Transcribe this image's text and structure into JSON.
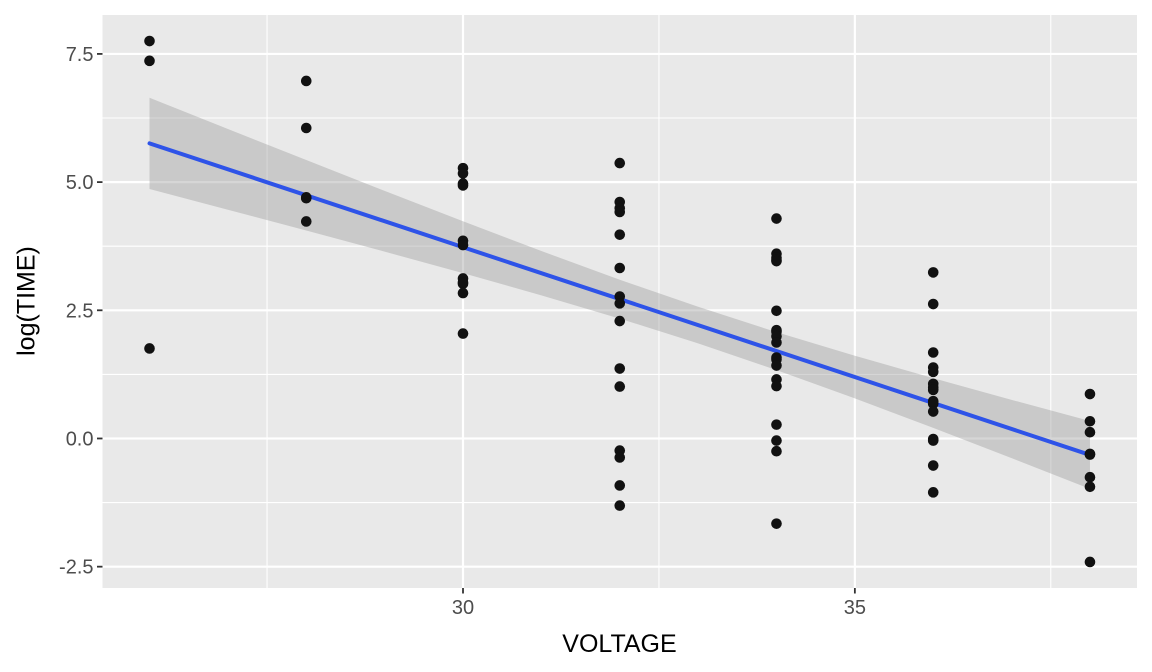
{
  "chart_data": {
    "type": "scatter",
    "title": "",
    "xlabel": "VOLTAGE",
    "ylabel": "log(TIME)",
    "xlim": [
      25.4,
      38.6
    ],
    "ylim": [
      -2.916,
      8.259
    ],
    "x_breaks": [
      30,
      35
    ],
    "x_tick_labels": [
      "30",
      "35"
    ],
    "x_minor_breaks": [
      27.5,
      32.5,
      37.5
    ],
    "y_breaks": [
      7.5,
      5.0,
      2.5,
      0.0,
      -2.5
    ],
    "y_tick_labels": [
      "7.5",
      "5.0",
      "2.5",
      "0.0",
      "-2.5"
    ],
    "y_minor_breaks": [
      6.25,
      3.75,
      1.25,
      -1.25
    ],
    "grid": true,
    "legend": "none",
    "groups": [
      {
        "voltage": 26,
        "log_time": [
          7.751,
          7.365,
          1.756
        ]
      },
      {
        "voltage": 28,
        "log_time": [
          6.973,
          6.055,
          4.703,
          4.685,
          4.232
        ]
      },
      {
        "voltage": 30,
        "log_time": [
          5.272,
          5.17,
          4.971,
          4.935,
          3.856,
          3.771,
          3.121,
          3.046,
          3.018,
          2.836,
          2.046
        ]
      },
      {
        "voltage": 32,
        "log_time": [
          5.371,
          4.611,
          4.492,
          4.417,
          3.975,
          3.325,
          2.768,
          2.635,
          2.29,
          1.364,
          1.012,
          -0.236,
          -0.371,
          -0.916,
          -1.309
        ]
      },
      {
        "voltage": 34,
        "log_time": [
          4.289,
          3.603,
          3.524,
          3.482,
          3.458,
          2.49,
          2.113,
          2.081,
          1.995,
          1.872,
          1.579,
          1.541,
          1.423,
          1.151,
          1.022,
          0.27,
          -0.041,
          -0.248,
          -1.661
        ]
      },
      {
        "voltage": 36,
        "log_time": [
          3.239,
          2.622,
          1.677,
          1.384,
          1.3,
          1.065,
          0.997,
          0.948,
          0.728,
          0.678,
          0.525,
          -0.01,
          -0.041,
          -0.528,
          -1.05
        ]
      },
      {
        "voltage": 38,
        "log_time": [
          0.867,
          0.336,
          0.122,
          -0.301,
          -0.315,
          -0.755,
          -0.942,
          -2.408
        ]
      }
    ],
    "smooth": {
      "method": "lm",
      "x_start": 26,
      "y_start": 5.756,
      "x_end": 38,
      "y_end": -0.321,
      "slope": -0.506,
      "intercept": 18.92
    },
    "ribbon": {
      "x": [
        26,
        27,
        28,
        29,
        30,
        31,
        32,
        33,
        34,
        35,
        36,
        37,
        38
      ],
      "upper": [
        6.646,
        6.036,
        5.43,
        4.828,
        4.236,
        3.656,
        3.096,
        2.568,
        2.074,
        1.614,
        1.176,
        0.753,
        0.34
      ],
      "lower": [
        4.866,
        4.462,
        4.056,
        3.644,
        3.224,
        2.792,
        2.338,
        1.854,
        1.334,
        0.782,
        0.206,
        -0.383,
        -0.982
      ]
    },
    "style": {
      "panel_bg": "#E9E9E9",
      "grid_color": "#FFFFFF",
      "ribbon_color": "#999999",
      "ribbon_opacity": 0.4,
      "line_color": "#2E53E8",
      "point_color": "#111111",
      "axis_text_color": "#4D4D4D",
      "axis_title_color": "#000000",
      "tick_mark_color": "#333333"
    }
  }
}
